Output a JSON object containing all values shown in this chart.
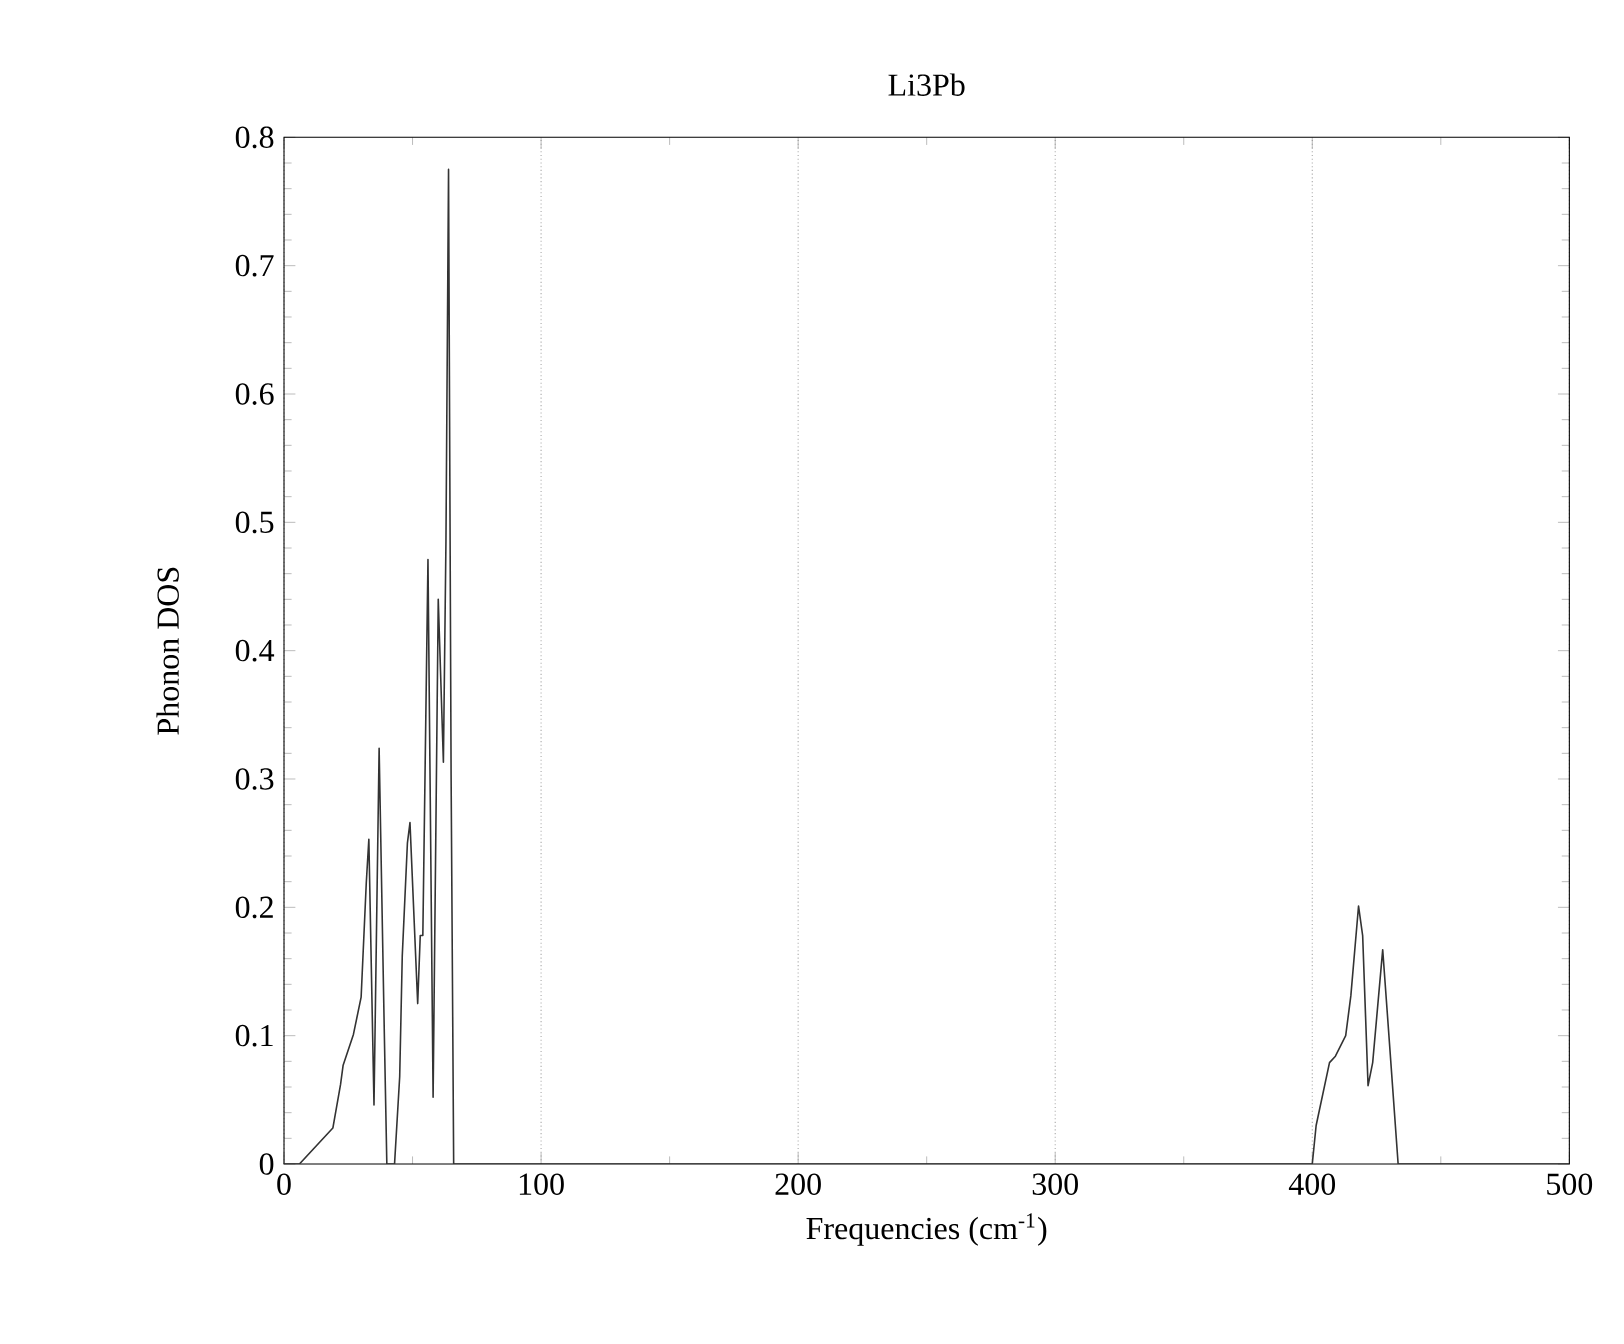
{
  "chart_data": {
    "type": "line",
    "title": "Li3Pb",
    "xlabel": "Frequencies (cm$^{-1}$)",
    "ylabel": "Phonon DOS",
    "xlim": [
      0,
      500
    ],
    "ylim": [
      0,
      0.8
    ],
    "xticks": [
      0,
      100,
      200,
      300,
      400,
      500
    ],
    "yticks": [
      0,
      0.1,
      0.2,
      0.3,
      0.4,
      0.5,
      0.6,
      0.7,
      0.8
    ],
    "grid": "x",
    "marker": "none",
    "line_style": "solid",
    "series": [
      {
        "color": "#333333",
        "x": [
          0,
          6,
          19,
          22,
          23,
          27,
          30,
          32,
          33,
          35,
          37,
          39,
          40,
          43,
          45,
          46,
          48,
          49,
          52,
          53,
          54,
          56,
          58,
          60,
          62,
          63,
          64,
          65,
          66,
          100,
          200,
          300,
          400,
          401.5,
          406.7,
          409,
          413,
          415,
          418,
          419.6,
          421.7,
          423.5,
          427.4,
          430,
          433.4,
          500
        ],
        "values": [
          0,
          0,
          0.028,
          0.062,
          0.077,
          0.101,
          0.13,
          0.219,
          0.253,
          0.046,
          0.324,
          0.104,
          0,
          0,
          0.068,
          0.162,
          0.25,
          0.266,
          0.125,
          0.178,
          0.178,
          0.471,
          0.052,
          0.44,
          0.313,
          0.486,
          0.775,
          0.303,
          0,
          0,
          0,
          0,
          0,
          0.03,
          0.079,
          0.084,
          0.1,
          0.131,
          0.201,
          0.178,
          0.061,
          0.079,
          0.167,
          0.095,
          0,
          0
        ]
      }
    ]
  }
}
